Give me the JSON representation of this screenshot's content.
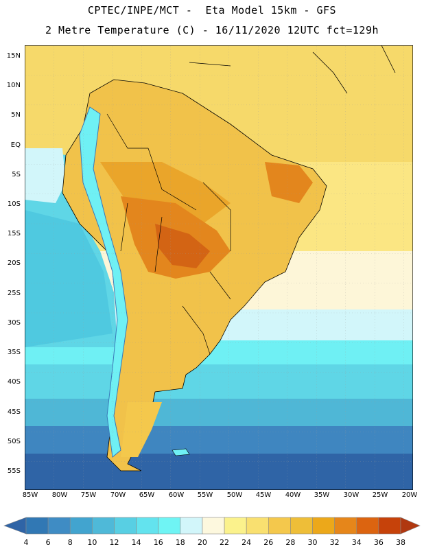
{
  "header": {
    "line1": "CPTEC/INPE/MCT -  Eta Model 15km - GFS",
    "line2": "2 Metre Temperature (C) - 16/11/2020 12UTC fct=129h"
  },
  "map": {
    "region": "South America",
    "lat_labels": [
      "15N",
      "10N",
      "5N",
      "EQ",
      "5S",
      "10S",
      "15S",
      "20S",
      "25S",
      "30S",
      "35S",
      "40S",
      "45S",
      "50S",
      "55S"
    ],
    "lon_labels": [
      "85W",
      "80W",
      "75W",
      "70W",
      "65W",
      "60W",
      "55W",
      "50W",
      "45W",
      "40W",
      "35W",
      "30W",
      "25W",
      "20W"
    ],
    "colors": {
      "ocean_cold": "#2f64a6",
      "ocean_cool": "#3f86c0",
      "ocean_mid": "#4fb7d6",
      "ocean_light": "#5fd6e6",
      "cyan": "#6ff0f4",
      "pale": "#d2f6fa",
      "cream": "#fdf6d8",
      "yellow": "#fbe683",
      "land_warm": "#f1c24a",
      "land_hot": "#eaa52a",
      "land_hotter": "#e3861d",
      "land_hottest": "#d36414",
      "coast": "#000000"
    }
  },
  "colorbar": {
    "labels": [
      "4",
      "6",
      "8",
      "10",
      "12",
      "14",
      "16",
      "18",
      "20",
      "22",
      "24",
      "26",
      "28",
      "30",
      "32",
      "34",
      "36",
      "38"
    ],
    "colors": [
      "#2f64a6",
      "#3178b4",
      "#3f8cc4",
      "#42a4cf",
      "#4fb9d8",
      "#58cfe3",
      "#63e3ee",
      "#6ff4f4",
      "#d2f6fa",
      "#fdf8de",
      "#fbf28c",
      "#f9e070",
      "#f4c84c",
      "#eebe38",
      "#eca81a",
      "#e6861a",
      "#dc6410",
      "#c6420a",
      "#b03810"
    ]
  }
}
